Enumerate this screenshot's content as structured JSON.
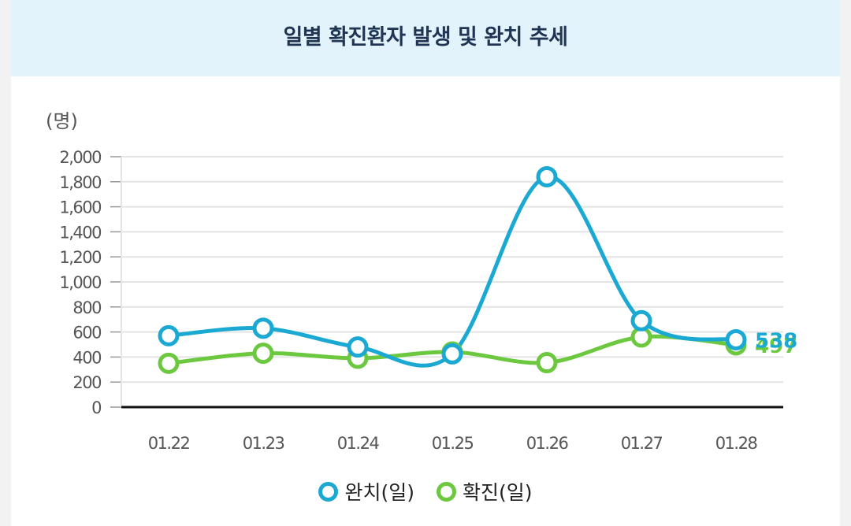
{
  "header": {
    "title": "일별 확진환자 발생 및 완치 추세"
  },
  "chart_data": {
    "type": "line",
    "title": "일별 확진환자 발생 및 완치 추세",
    "ylabel": "(명)",
    "categories": [
      "01.22",
      "01.23",
      "01.24",
      "01.25",
      "01.26",
      "01.27",
      "01.28"
    ],
    "yticks": [
      "0",
      "200",
      "400",
      "600",
      "800",
      "1,000",
      "1,200",
      "1,400",
      "1,600",
      "1,800",
      "2,000"
    ],
    "ylim": [
      0,
      2000
    ],
    "grid": true,
    "legend_position": "bottom",
    "series": [
      {
        "name": "완치(일)",
        "color": "#1ba9d3",
        "values": [
          570,
          630,
          480,
          425,
          1840,
          690,
          538
        ],
        "last_label": "538"
      },
      {
        "name": "확진(일)",
        "color": "#6cc93f",
        "values": [
          350,
          430,
          390,
          440,
          355,
          560,
          497
        ],
        "last_label": "497"
      }
    ]
  }
}
